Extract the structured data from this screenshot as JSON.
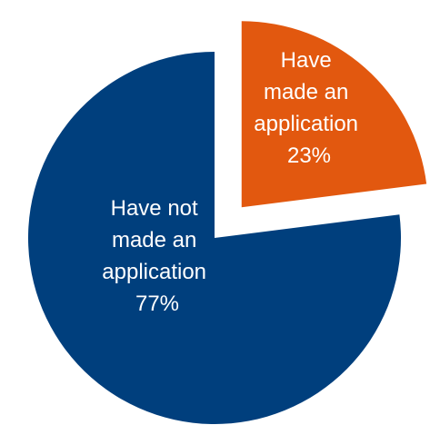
{
  "chart_data": {
    "type": "pie",
    "title": "",
    "slices": [
      {
        "label_lines": [
          "Have",
          "made an",
          "application"
        ],
        "percent_label": "23%",
        "value": 23,
        "color": "#E2580F",
        "exploded": true
      },
      {
        "label_lines": [
          "Have not",
          "made an",
          "application"
        ],
        "percent_label": "77%",
        "value": 77,
        "color": "#003F7D",
        "exploded": false
      }
    ],
    "start_angle_deg": 0,
    "direction": "clockwise",
    "legend": "none"
  }
}
